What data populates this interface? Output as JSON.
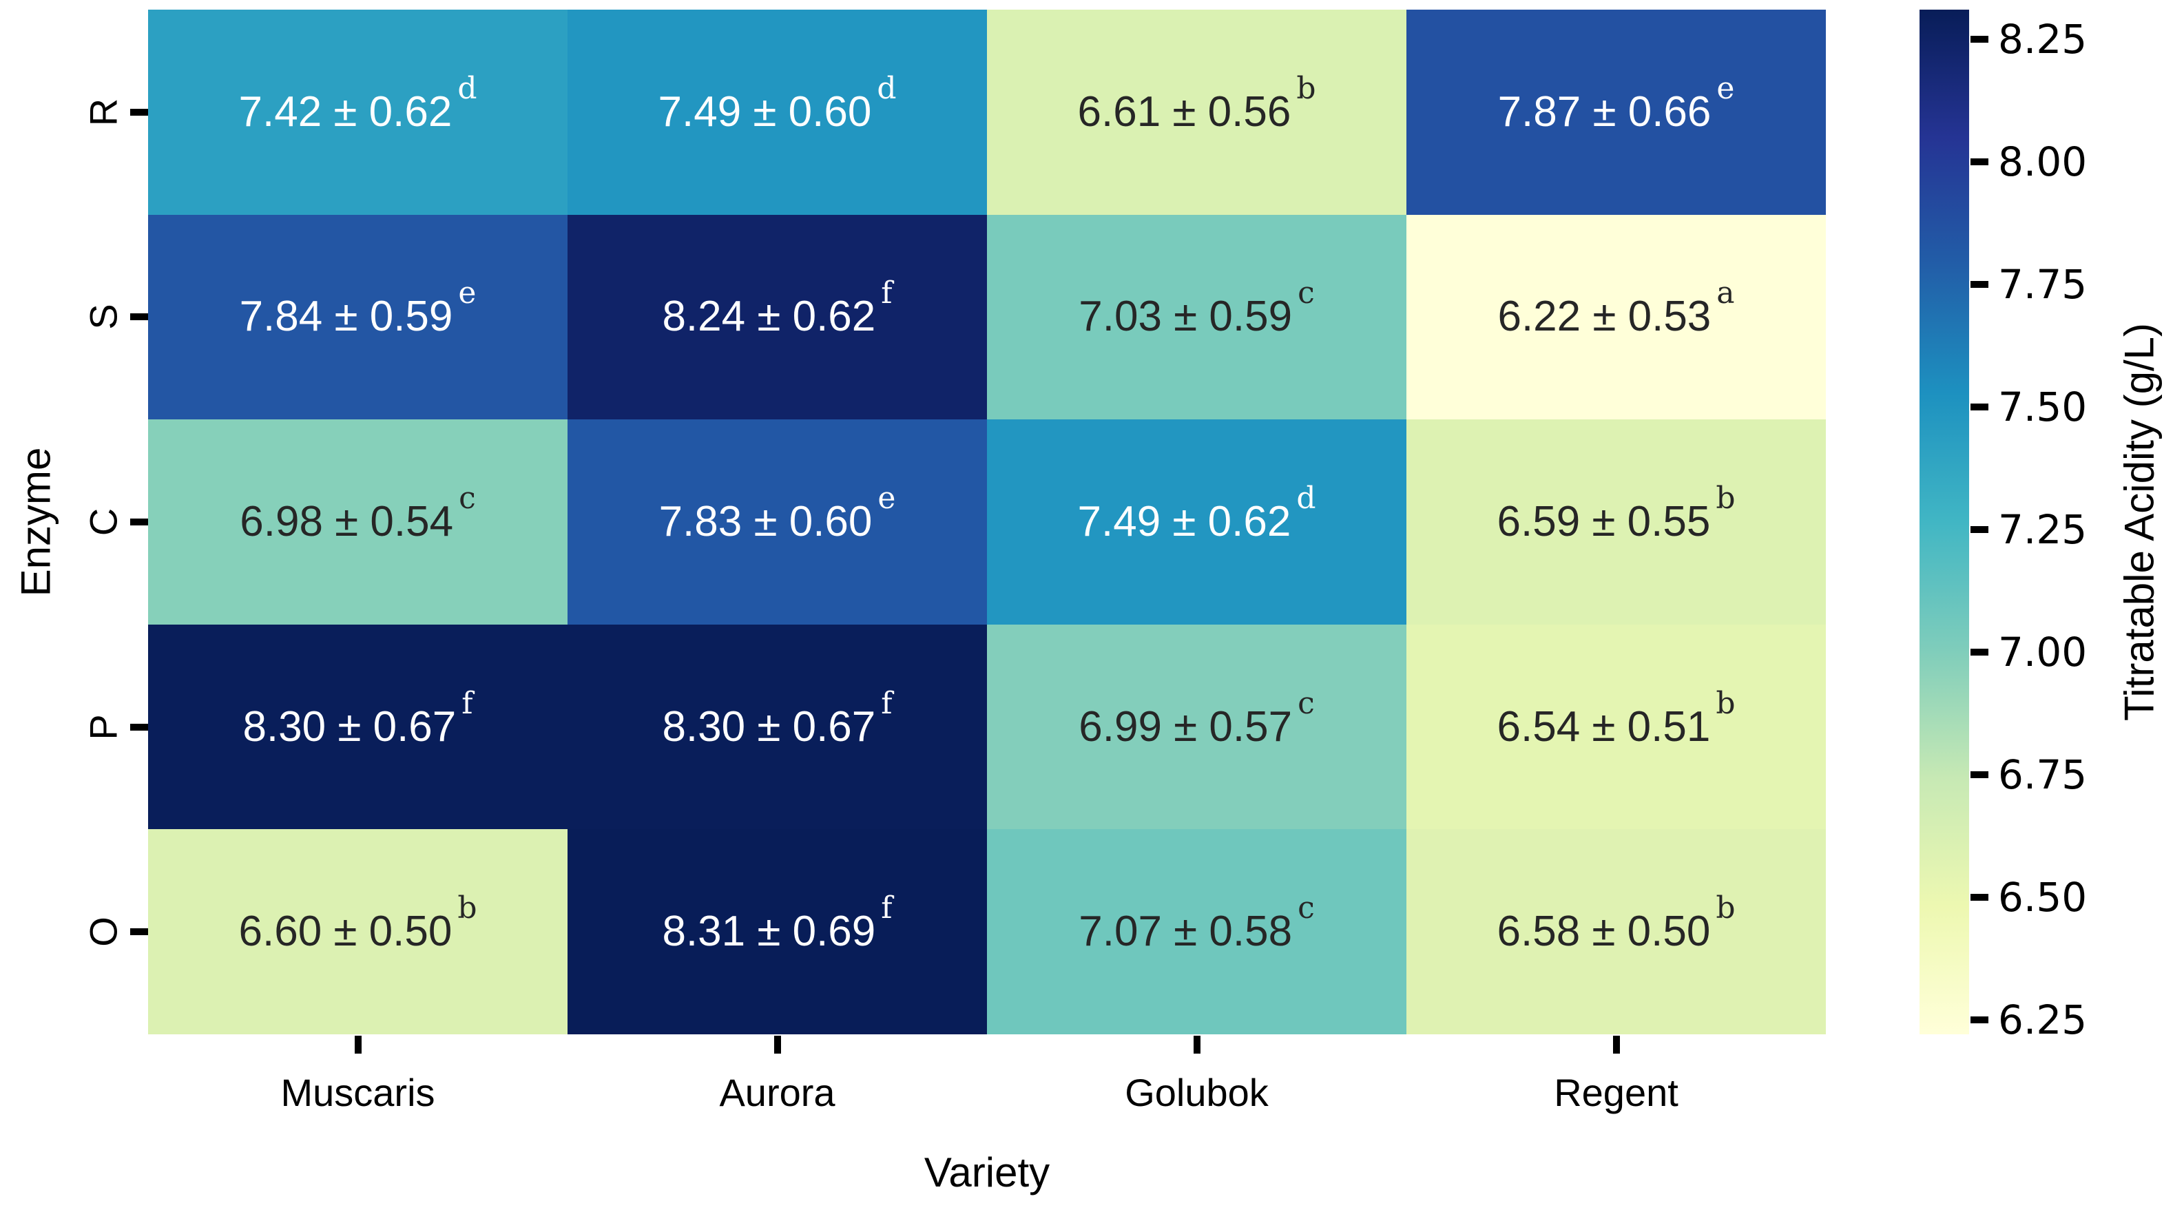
{
  "chart_data": {
    "type": "heatmap",
    "title": "",
    "xlabel": "Variety",
    "ylabel": "Enzyme",
    "rows": [
      "R",
      "S",
      "C",
      "P",
      "O"
    ],
    "columns": [
      "Muscaris",
      "Aurora",
      "Golubok",
      "Regent"
    ],
    "plus_minus": "±",
    "cells": [
      [
        {
          "value": 7.42,
          "sd": "0.62",
          "letter": "d"
        },
        {
          "value": 7.49,
          "sd": "0.60",
          "letter": "d"
        },
        {
          "value": 6.61,
          "sd": "0.56",
          "letter": "b"
        },
        {
          "value": 7.87,
          "sd": "0.66",
          "letter": "e"
        }
      ],
      [
        {
          "value": 7.84,
          "sd": "0.59",
          "letter": "e"
        },
        {
          "value": 8.24,
          "sd": "0.62",
          "letter": "f"
        },
        {
          "value": 7.03,
          "sd": "0.59",
          "letter": "c"
        },
        {
          "value": 6.22,
          "sd": "0.53",
          "letter": "a"
        }
      ],
      [
        {
          "value": 6.98,
          "sd": "0.54",
          "letter": "c"
        },
        {
          "value": 7.83,
          "sd": "0.60",
          "letter": "e"
        },
        {
          "value": 7.49,
          "sd": "0.62",
          "letter": "d"
        },
        {
          "value": 6.59,
          "sd": "0.55",
          "letter": "b"
        }
      ],
      [
        {
          "value": 8.3,
          "sd": "0.67",
          "letter": "f"
        },
        {
          "value": 8.3,
          "sd": "0.67",
          "letter": "f"
        },
        {
          "value": 6.99,
          "sd": "0.57",
          "letter": "c"
        },
        {
          "value": 6.54,
          "sd": "0.51",
          "letter": "b"
        }
      ],
      [
        {
          "value": 6.6,
          "sd": "0.50",
          "letter": "b"
        },
        {
          "value": 8.31,
          "sd": "0.69",
          "letter": "f"
        },
        {
          "value": 7.07,
          "sd": "0.58",
          "letter": "c"
        },
        {
          "value": 6.58,
          "sd": "0.50",
          "letter": "b"
        }
      ]
    ],
    "colorbar": {
      "label": "Titratable Acidity (g/L)",
      "tick_labels": [
        "8.25",
        "8.00",
        "7.75",
        "7.50",
        "7.25",
        "7.00",
        "6.75",
        "6.50",
        "6.25"
      ],
      "vmin": 6.22,
      "vmax": 8.31,
      "colormap": "YlGnBu",
      "gradient": [
        "#FFFFD9",
        "#EDF8B1",
        "#C7E9B4",
        "#7FCDBB",
        "#41B6C4",
        "#1D91C0",
        "#225EA8",
        "#253494",
        "#081D58"
      ]
    },
    "text_colors": {
      "light": "#FFFFFF",
      "dark": "#262626"
    },
    "layout": {
      "grid": "off",
      "legend": "colorbar-right",
      "xlim": [
        "Muscaris",
        "Regent"
      ],
      "ylim": [
        "R",
        "O"
      ]
    }
  }
}
